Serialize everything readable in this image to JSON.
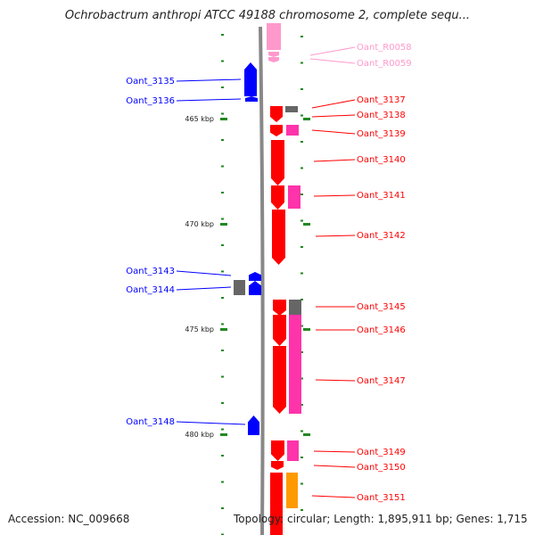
{
  "title": "Ochrobactrum anthropi ATCC 49188 chromosome 2, complete sequ...",
  "footer": {
    "accession": "Accession: NC_009668",
    "summary": "Topology: circular; Length: 1,895,911 bp; Genes: 1,715"
  },
  "colors": {
    "forward": "#ff0000",
    "forward_partner": "#ff33aa",
    "reverse": "#0000ff",
    "rna": "#ff99cc",
    "pseudo": "#666666",
    "orange": "#ff9900",
    "backbone": "#888888",
    "tick": "#228822"
  },
  "scale": {
    "ticks": [
      {
        "label": "465 kbp",
        "kbp": 465
      },
      {
        "label": "470 kbp",
        "kbp": 470
      },
      {
        "label": "475 kbp",
        "kbp": 475
      },
      {
        "label": "480 kbp",
        "kbp": 480
      }
    ]
  },
  "left_labels": [
    {
      "text": "Oant_3135"
    },
    {
      "text": "Oant_3136"
    },
    {
      "text": "Oant_3143"
    },
    {
      "text": "Oant_3144"
    },
    {
      "text": "Oant_3148"
    }
  ],
  "right_labels": [
    {
      "text": "Oant_R0058",
      "kind": "rna"
    },
    {
      "text": "Oant_R0059",
      "kind": "rna"
    },
    {
      "text": "Oant_3137",
      "kind": "forward"
    },
    {
      "text": "Oant_3138",
      "kind": "forward"
    },
    {
      "text": "Oant_3139",
      "kind": "forward"
    },
    {
      "text": "Oant_3140",
      "kind": "forward"
    },
    {
      "text": "Oant_3141",
      "kind": "forward"
    },
    {
      "text": "Oant_3142",
      "kind": "forward"
    },
    {
      "text": "Oant_3145",
      "kind": "forward"
    },
    {
      "text": "Oant_3146",
      "kind": "forward"
    },
    {
      "text": "Oant_3147",
      "kind": "forward"
    },
    {
      "text": "Oant_3149",
      "kind": "forward"
    },
    {
      "text": "Oant_3150",
      "kind": "forward"
    },
    {
      "text": "Oant_3151",
      "kind": "forward"
    }
  ]
}
